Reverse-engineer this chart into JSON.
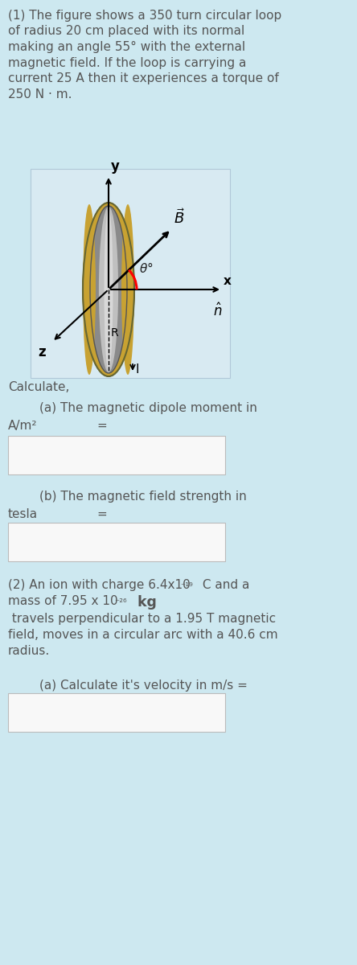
{
  "bg_color": "#cde8f0",
  "text_color": "#555555",
  "white_box_color": "#f8f8f8",
  "diagram_bg": "#ddeef5",
  "title1_lines": [
    "(1) The figure shows a 350 turn circular loop",
    "of radius 20 cm placed with its normal",
    "making an angle 55° with the external",
    "magnetic field. If the loop is carrying a",
    "current 25 A then it experiences a torque of",
    "250 N · m."
  ],
  "calculate_label": "Calculate,",
  "part_a1_line1": "        (a) The magnetic dipole moment in",
  "part_a1_line2": "A/m²",
  "part_a1_eq": "=",
  "part_b1_indent": "        (b) The magnetic field strength in",
  "part_b1_line2": "tesla",
  "part_b1_eq": "=",
  "font_size": 11.0
}
